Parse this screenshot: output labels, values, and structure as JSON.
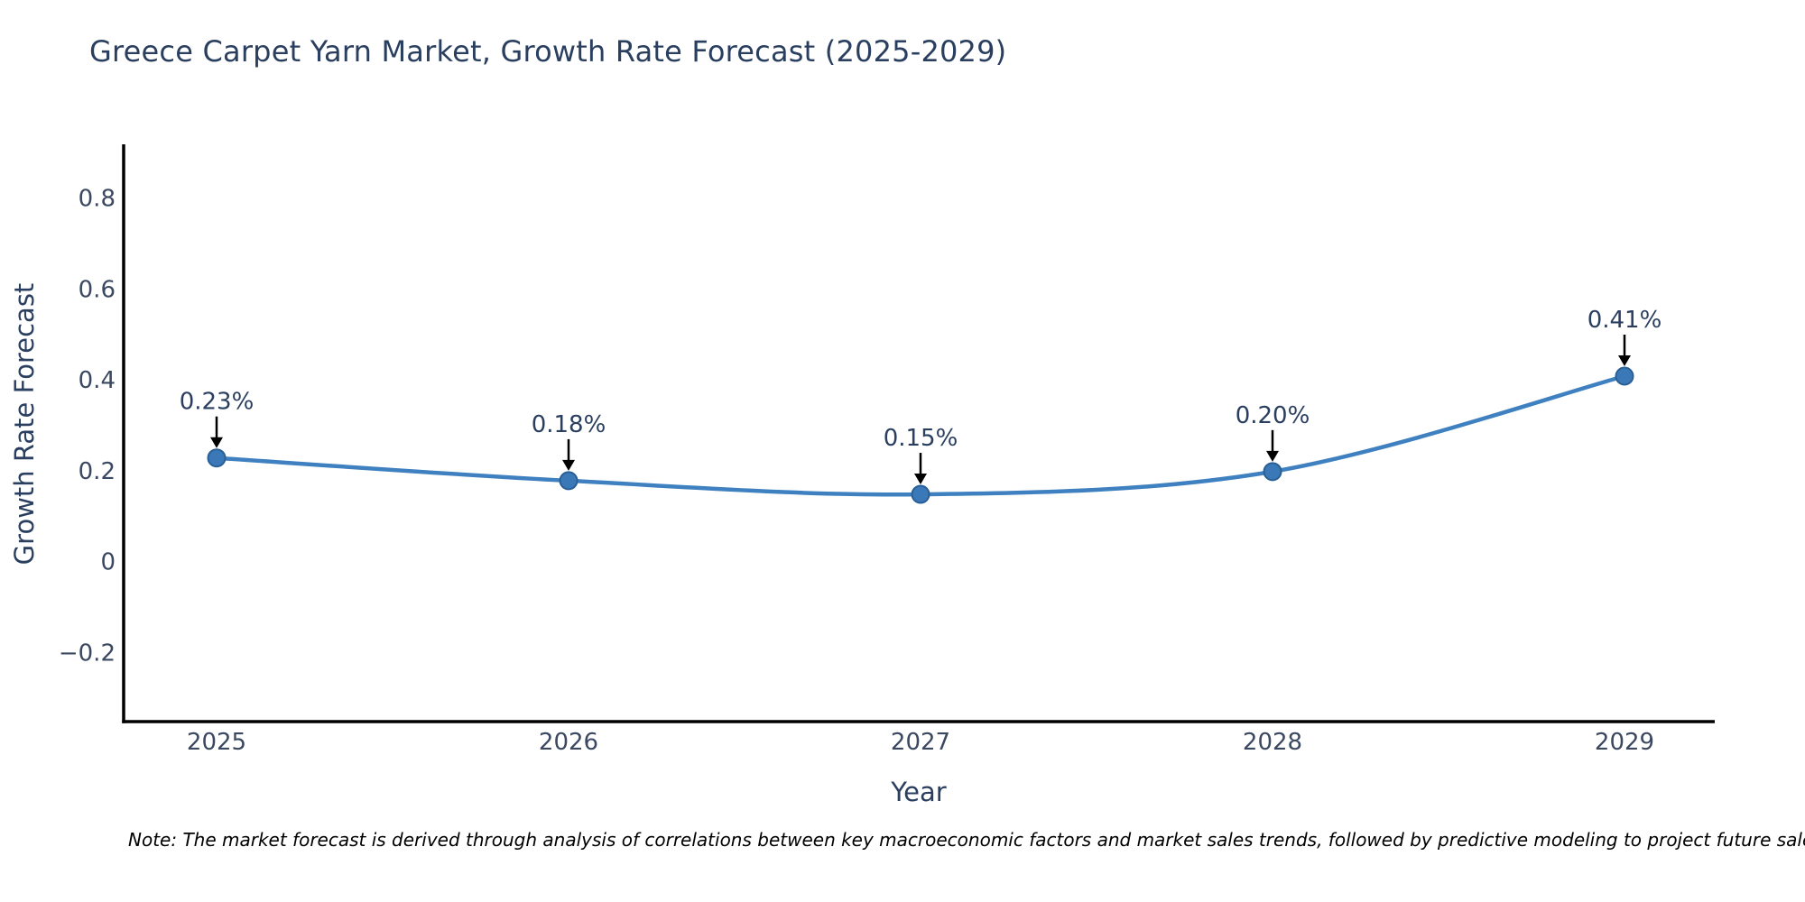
{
  "title": "Greece Carpet Yarn Market, Growth Rate Forecast (2025-2029)",
  "note": "Note: The market forecast is derived through analysis of correlations between key macroeconomic factors and market sales trends, followed by predictive modeling to project future sales.",
  "chart_data": {
    "type": "line",
    "line_shape": "spline",
    "categories": [
      "2025",
      "2026",
      "2027",
      "2028",
      "2029"
    ],
    "values": [
      0.23,
      0.18,
      0.15,
      0.2,
      0.41
    ],
    "point_labels": [
      "0.23%",
      "0.18%",
      "0.15%",
      "0.20%",
      "0.41%"
    ],
    "xlabel": "Year",
    "ylabel": "Growth Rate Forecast",
    "ytick_values": [
      0.8,
      0.6,
      0.4,
      0.2,
      0,
      -0.2
    ],
    "ytick_labels": [
      "0.8",
      "0.6",
      "0.4",
      "0.2",
      "0",
      "−0.2"
    ],
    "ylim": [
      -0.35,
      0.92
    ],
    "grid": false,
    "legend": "none",
    "colors": {
      "line": "#3f80c0",
      "marker": "#3a78b8",
      "marker_edge": "#2a5f96",
      "axis": "#000000",
      "tick_label": "#3b4861",
      "axis_title": "#2a3f5f",
      "title": "#2a3f5f",
      "annotation_text": "#2a3f5f",
      "annotation_arrow": "#000000"
    }
  }
}
